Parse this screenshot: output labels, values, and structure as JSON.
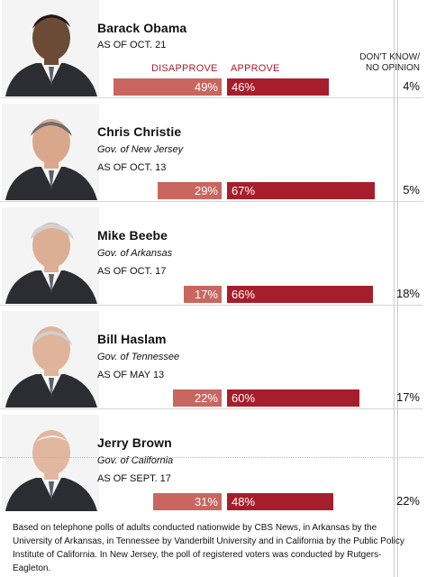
{
  "headers": {
    "disapprove": "DISAPPROVE",
    "approve": "APPROVE",
    "dont_know_line1": "DON'T KNOW/",
    "dont_know_line2": "NO OPINION"
  },
  "chart_data": {
    "type": "bar",
    "categories": [
      "Barack Obama",
      "Chris Christie",
      "Mike Beebe",
      "Bill Haslam",
      "Jerry Brown"
    ],
    "series": [
      {
        "name": "DISAPPROVE",
        "values": [
          49,
          29,
          17,
          22,
          31
        ]
      },
      {
        "name": "APPROVE",
        "values": [
          46,
          67,
          66,
          60,
          48
        ]
      },
      {
        "name": "DON'T KNOW/NO OPINION",
        "values": [
          4,
          5,
          18,
          17,
          22
        ]
      }
    ],
    "value_labels": {
      "disapprove": [
        "49%",
        "29%",
        "17%",
        "22%",
        "31%"
      ],
      "approve": [
        "46%",
        "67%",
        "66%",
        "60%",
        "48%"
      ],
      "dont_know": [
        "4%",
        "5%",
        "18%",
        "17%",
        "22%"
      ]
    },
    "title": "",
    "xlabel": "",
    "ylabel": "",
    "xlim": [
      0,
      100
    ],
    "colors": {
      "disapprove": "#c8665f",
      "approve": "#a61e2c"
    },
    "grid": false
  },
  "people": [
    {
      "name": "Barack Obama",
      "subtitle": "",
      "as_of": "AS OF OCT. 21",
      "portrait": "barack-obama-portrait"
    },
    {
      "name": "Chris Christie",
      "subtitle": "Gov. of New Jersey",
      "as_of": "AS OF OCT. 13",
      "portrait": "chris-christie-portrait"
    },
    {
      "name": "Mike Beebe",
      "subtitle": "Gov. of Arkansas",
      "as_of": "AS OF OCT. 17",
      "portrait": "mike-beebe-portrait"
    },
    {
      "name": "Bill Haslam",
      "subtitle": "Gov. of Tennessee",
      "as_of": "AS OF MAY 13",
      "portrait": "bill-haslam-portrait"
    },
    {
      "name": "Jerry Brown",
      "subtitle": "Gov. of California",
      "as_of": "AS OF SEPT. 17",
      "portrait": "jerry-brown-portrait"
    }
  ],
  "footnote": "Based on telephone polls of adults conducted nationwide by CBS News, in Arkansas by the University of Arkansas, in Tennessee by Vanderbilt University and in California by the Public Policy Institute of California. In New Jersey, the poll of registered voters was conducted by Rutgers-Eagleton."
}
